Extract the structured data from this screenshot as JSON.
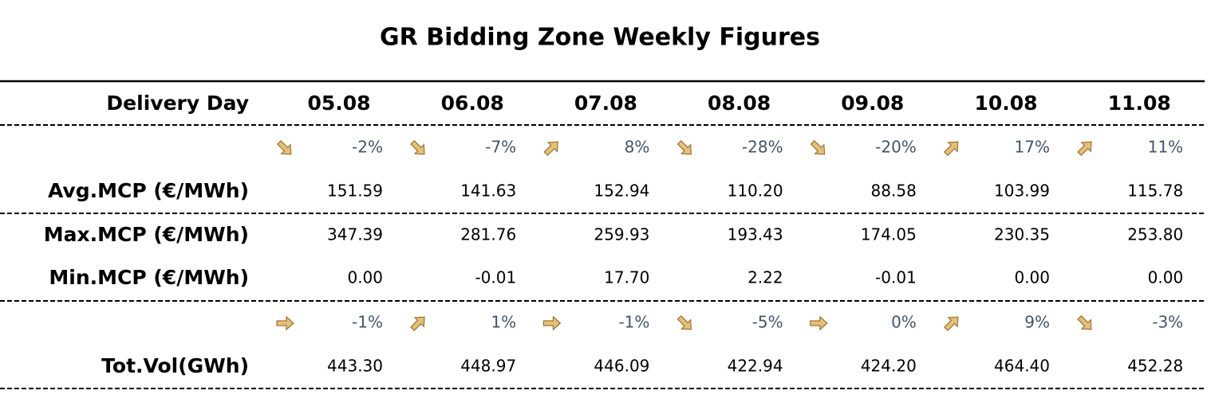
{
  "title": "GR Bidding Zone Weekly Figures",
  "table": {
    "header": "Delivery Day",
    "days": [
      "05.08",
      "06.08",
      "07.08",
      "08.08",
      "09.08",
      "10.08",
      "11.08"
    ],
    "rows": [
      {
        "changes": [
          "-2%",
          "-7%",
          "8%",
          "-28%",
          "-20%",
          "17%",
          "11%"
        ]
      },
      {
        "label": "Avg.MCP (€/MWh)",
        "values": [
          "151.59",
          "141.63",
          "152.94",
          "110.20",
          "88.58",
          "103.99",
          "115.78"
        ]
      },
      {
        "label": "Max.MCP (€/MWh)",
        "values": [
          "347.39",
          "281.76",
          "259.93",
          "193.43",
          "174.05",
          "230.35",
          "253.80"
        ]
      },
      {
        "label": "Min.MCP (€/MWh)",
        "values": [
          "0.00",
          "-0.01",
          "17.70",
          "2.22",
          "-0.01",
          "0.00",
          "0.00"
        ]
      },
      {
        "changes": [
          "-1%",
          "1%",
          "-1%",
          "-5%",
          "0%",
          "9%",
          "-3%"
        ]
      },
      {
        "label": "Tot.Vol(GWh)",
        "values": [
          "443.30",
          "448.97",
          "446.09",
          "422.94",
          "424.20",
          "464.40",
          "452.28"
        ]
      }
    ]
  }
}
